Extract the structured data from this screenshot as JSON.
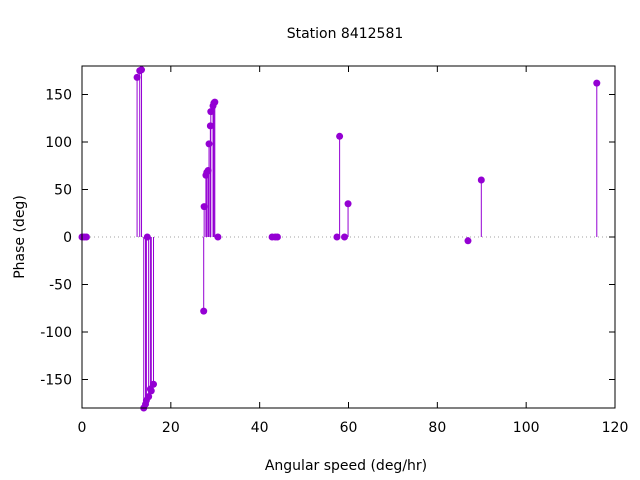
{
  "chart_data": {
    "type": "scatter",
    "style": "impulses-with-points",
    "title": "Station 8412581",
    "xlabel": "Angular speed (deg/hr)",
    "ylabel": "Phase (deg)",
    "xlim": [
      0,
      120
    ],
    "ylim": [
      -180,
      180
    ],
    "xticks": [
      0,
      20,
      40,
      60,
      80,
      100,
      120
    ],
    "yticks": [
      -150,
      -100,
      -50,
      0,
      50,
      100,
      150
    ],
    "grid": false,
    "zero_line": "dotted",
    "color": "#9400d3",
    "series": [
      {
        "points": [
          [
            0.0,
            0
          ],
          [
            0.5,
            0
          ],
          [
            1.0,
            0
          ],
          [
            12.4,
            168
          ],
          [
            13.0,
            175
          ],
          [
            13.4,
            176
          ],
          [
            13.9,
            -180
          ],
          [
            14.3,
            -176
          ],
          [
            14.5,
            -172
          ],
          [
            14.7,
            0
          ],
          [
            15.0,
            -168
          ],
          [
            15.4,
            -160
          ],
          [
            15.6,
            -162
          ],
          [
            16.1,
            -155
          ],
          [
            27.4,
            -78
          ],
          [
            27.5,
            32
          ],
          [
            27.9,
            65
          ],
          [
            28.1,
            68
          ],
          [
            28.4,
            70
          ],
          [
            28.6,
            98
          ],
          [
            28.9,
            117
          ],
          [
            29.0,
            132
          ],
          [
            29.5,
            138
          ],
          [
            29.7,
            141
          ],
          [
            29.9,
            142
          ],
          [
            30.6,
            0
          ],
          [
            42.8,
            0
          ],
          [
            43.5,
            0
          ],
          [
            44.0,
            0
          ],
          [
            57.4,
            0
          ],
          [
            58.0,
            106
          ],
          [
            59.1,
            0
          ],
          [
            59.9,
            35
          ],
          [
            86.9,
            -4
          ],
          [
            89.9,
            60
          ],
          [
            115.9,
            162
          ]
        ]
      }
    ]
  }
}
